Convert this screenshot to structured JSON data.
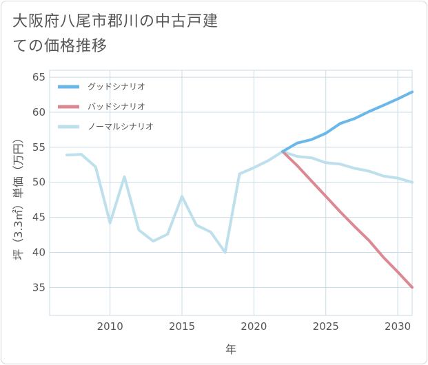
{
  "title": "大阪府八尾市郡川の中古戸建ての価格推移",
  "colors": {
    "good": "#6ab7ea",
    "bad": "#db8a93",
    "normal": "#bde0ec",
    "grid": "#c9dbe6",
    "text": "#555555"
  },
  "chart_data": {
    "type": "line",
    "title": "大阪府八尾市郡川の中古戸建ての価格推移",
    "xlabel": "年",
    "ylabel": "坪（3.3㎡）単価（万円）",
    "xlim": [
      2005.8,
      2031
    ],
    "ylim": [
      31,
      66
    ],
    "x_ticks": [
      2010,
      2015,
      2020,
      2025,
      2030
    ],
    "y_ticks": [
      35,
      40,
      45,
      50,
      55,
      60,
      65
    ],
    "grid": true,
    "legend_position": "top-left",
    "series": [
      {
        "name": "グッドシナリオ",
        "key": "good",
        "x": [
          2022,
          2023,
          2024,
          2025,
          2026,
          2027,
          2028,
          2029,
          2030,
          2031
        ],
        "y": [
          54.4,
          55.6,
          56.1,
          57.0,
          58.4,
          59.1,
          60.1,
          61.0,
          61.9,
          62.9
        ]
      },
      {
        "name": "バッドシナリオ",
        "key": "bad",
        "x": [
          2022,
          2023,
          2024,
          2025,
          2026,
          2027,
          2028,
          2029,
          2030,
          2031
        ],
        "y": [
          54.4,
          52.4,
          50.2,
          48.0,
          45.8,
          43.7,
          41.7,
          39.3,
          37.2,
          35.0
        ]
      },
      {
        "name": "ノーマルシナリオ",
        "key": "normal",
        "x": [
          2007,
          2008,
          2009,
          2010,
          2011,
          2012,
          2013,
          2014,
          2015,
          2016,
          2017,
          2018,
          2019,
          2020,
          2021,
          2022,
          2023,
          2024,
          2025,
          2026,
          2027,
          2028,
          2029,
          2030,
          2031
        ],
        "y": [
          53.9,
          54.0,
          52.2,
          44.2,
          50.8,
          43.2,
          41.6,
          42.6,
          48.0,
          43.9,
          42.9,
          40.0,
          51.2,
          52.1,
          53.1,
          54.4,
          53.7,
          53.5,
          52.8,
          52.6,
          52.0,
          51.6,
          50.9,
          50.6,
          50.0
        ]
      }
    ]
  }
}
